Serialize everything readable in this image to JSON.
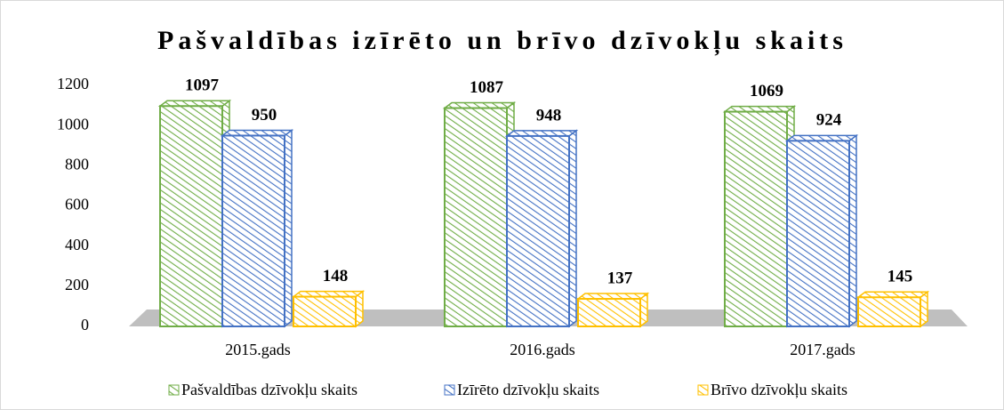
{
  "chart_data": {
    "type": "bar3d",
    "title": "Pašvaldības izīrēto un brīvo dzīvokļu skaits",
    "categories": [
      "2015.gads",
      "2016.gads",
      "2017.gads"
    ],
    "series": [
      {
        "name": "Pašvaldības dzīvokļu skaits",
        "color": "#70ad47",
        "values": [
          1097,
          1087,
          1069
        ]
      },
      {
        "name": "Izīrēto dzīvokļu skaits",
        "color": "#4472c4",
        "values": [
          950,
          948,
          924
        ]
      },
      {
        "name": "Brīvo dzīvokļu skaits",
        "color": "#ffc000",
        "values": [
          148,
          137,
          145
        ]
      }
    ],
    "ylim": [
      0,
      1200
    ],
    "yticks": [
      0,
      200,
      400,
      600,
      800,
      1000,
      1200
    ],
    "grid": false,
    "legend": "bottom"
  }
}
